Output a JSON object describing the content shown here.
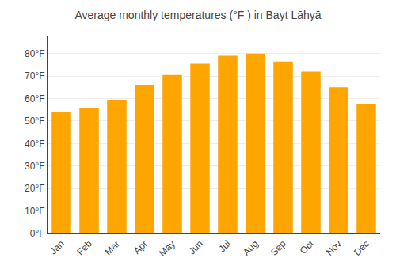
{
  "chart_data": {
    "type": "bar",
    "title": "Average monthly temperatures (°F ) in Bayt Lāhyā",
    "categories": [
      "Jan",
      "Feb",
      "Mar",
      "Apr",
      "May",
      "Jun",
      "Jul",
      "Aug",
      "Sep",
      "Oct",
      "Nov",
      "Dec"
    ],
    "values": [
      54,
      56,
      59.5,
      66,
      70.5,
      75.5,
      79,
      80,
      76.5,
      72,
      65,
      57.5
    ],
    "color": "#FFA500",
    "ylim": [
      0,
      88
    ],
    "yticks": [
      {
        "value": 0,
        "label": "0°F"
      },
      {
        "value": 10,
        "label": "10°F"
      },
      {
        "value": 20,
        "label": "20°F"
      },
      {
        "value": 30,
        "label": "30°F"
      },
      {
        "value": 40,
        "label": "40°F"
      },
      {
        "value": 50,
        "label": "50°F"
      },
      {
        "value": 60,
        "label": "60°F"
      },
      {
        "value": 70,
        "label": "70°F"
      },
      {
        "value": 80,
        "label": "80°F"
      }
    ],
    "grid": true
  }
}
